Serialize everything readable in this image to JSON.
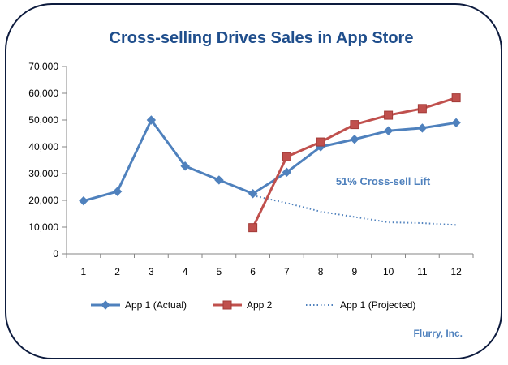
{
  "chart_data": {
    "type": "line",
    "title": "Cross-selling Drives Sales in App Store",
    "xlabel": "",
    "ylabel": "",
    "categories": [
      1,
      2,
      3,
      4,
      5,
      6,
      7,
      8,
      9,
      10,
      11,
      12
    ],
    "ylim": [
      0,
      70000
    ],
    "yticks": [
      0,
      10000,
      20000,
      30000,
      40000,
      50000,
      60000,
      70000
    ],
    "ytick_labels": [
      "0",
      "10,000",
      "20,000",
      "30,000",
      "40,000",
      "50,000",
      "60,000",
      "70,000"
    ],
    "series": [
      {
        "name": "App 1 (Actual)",
        "x": [
          1,
          2,
          3,
          4,
          5,
          6,
          7,
          8,
          9,
          10,
          11,
          12
        ],
        "values": [
          19800,
          23300,
          50000,
          32800,
          27600,
          22500,
          30500,
          40000,
          42800,
          46000,
          47000,
          49000
        ],
        "color": "#4f81bd",
        "marker": "diamond",
        "line": "solid"
      },
      {
        "name": "App 2",
        "x": [
          6,
          7,
          8,
          9,
          10,
          11,
          12
        ],
        "values": [
          9800,
          36300,
          41800,
          48300,
          51800,
          54300,
          58300
        ],
        "color": "#c0504d",
        "marker": "square",
        "line": "solid"
      },
      {
        "name": "App 1 (Projected)",
        "x": [
          6,
          7,
          8,
          9,
          10,
          11,
          12
        ],
        "values": [
          21800,
          19000,
          15800,
          13800,
          11800,
          11500,
          10800
        ],
        "color": "#4f81bd",
        "marker": "none",
        "line": "dotted"
      }
    ],
    "legend_position": "bottom",
    "grid": false,
    "annotations": [
      {
        "text": "51% Cross-sell Lift",
        "color": "#4f81bd"
      }
    ],
    "source": {
      "text": "Flurry, Inc.",
      "color": "#4f81bd"
    }
  }
}
